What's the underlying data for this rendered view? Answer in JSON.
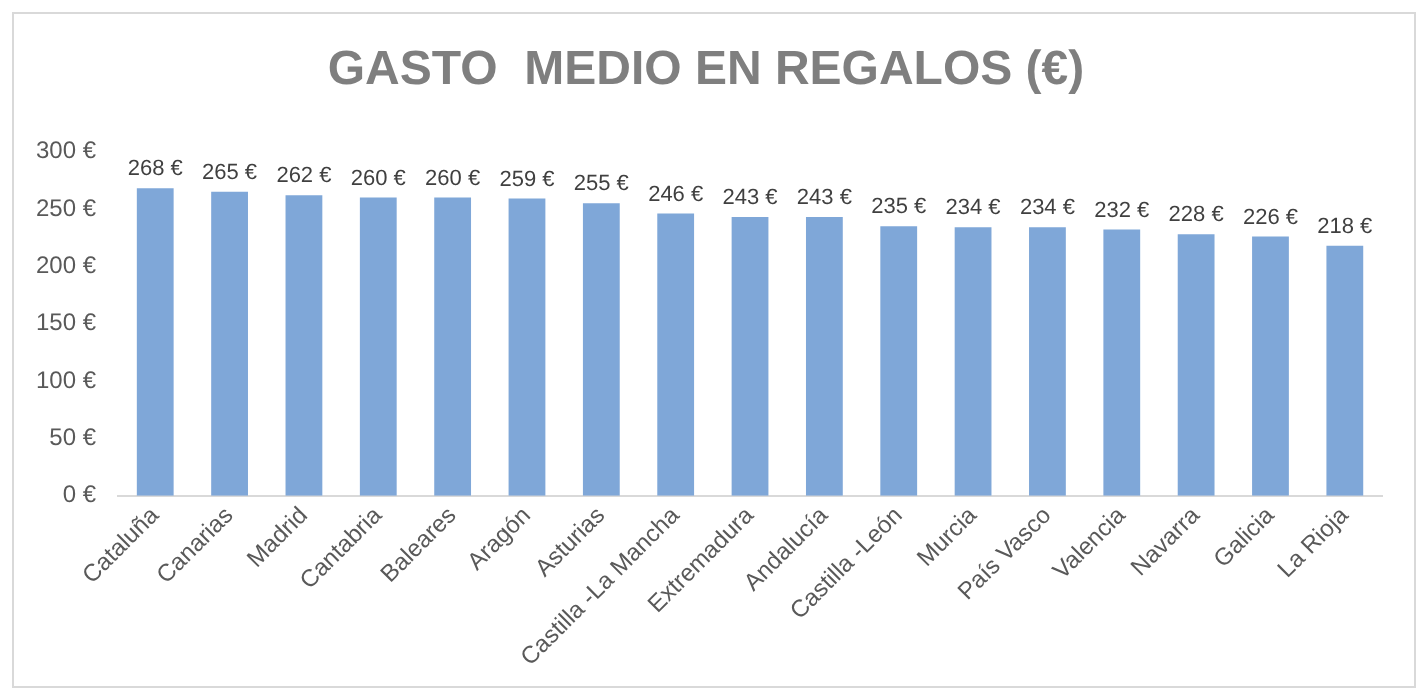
{
  "chart_data": {
    "type": "bar",
    "title": "GASTO  MEDIO EN REGALOS (€)",
    "categories": [
      "Cataluña",
      "Canarias",
      "Madrid",
      "Cantabria",
      "Baleares",
      "Aragón",
      "Asturias",
      "Castilla -La Mancha",
      "Extremadura",
      "Andalucía",
      "Castilla -León",
      "Murcia",
      "País Vasco",
      "Valencia",
      "Navarra",
      "Galicia",
      "La Rioja"
    ],
    "values": [
      268,
      265,
      262,
      260,
      260,
      259,
      255,
      246,
      243,
      243,
      235,
      234,
      234,
      232,
      228,
      226,
      218
    ],
    "value_labels": [
      "268 €",
      "265 €",
      "262 €",
      "260 €",
      "260 €",
      "259 €",
      "255 €",
      "246 €",
      "243 €",
      "243 €",
      "235 €",
      "234 €",
      "234 €",
      "232 €",
      "228 €",
      "226 €",
      "218 €"
    ],
    "color": "#7fa7d8",
    "ylim": [
      0,
      300
    ],
    "yticks": [
      {
        "value": 0,
        "label": "0 €"
      },
      {
        "value": 50,
        "label": "50 €"
      },
      {
        "value": 100,
        "label": "100 €"
      },
      {
        "value": 150,
        "label": "150 €"
      },
      {
        "value": 200,
        "label": "200 €"
      },
      {
        "value": 250,
        "label": "250 €"
      },
      {
        "value": 300,
        "label": "300 €"
      }
    ],
    "grid": false,
    "legend": false
  }
}
